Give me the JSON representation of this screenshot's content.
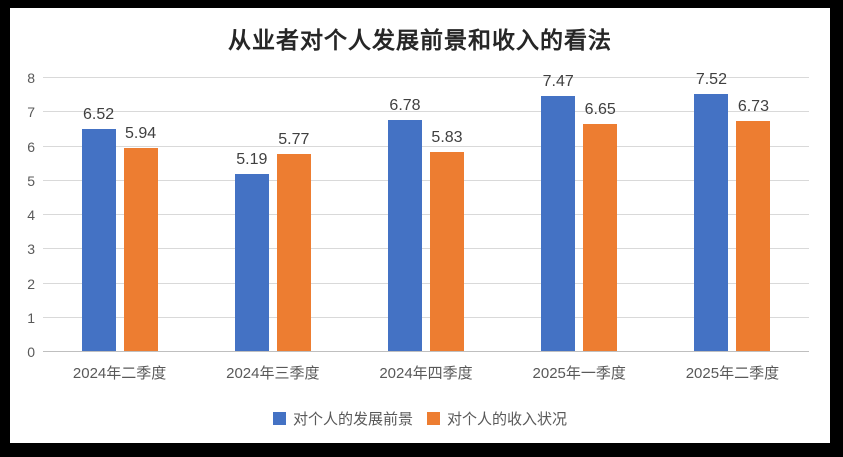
{
  "chart_data": {
    "type": "bar",
    "title": "从业者对个人发展前景和收入的看法",
    "categories": [
      "2024年二季度",
      "2024年三季度",
      "2024年四季度",
      "2025年一季度",
      "2025年二季度"
    ],
    "series": [
      {
        "name": "对个人的发展前景",
        "color": "#4472C4",
        "values": [
          6.52,
          5.19,
          6.78,
          7.47,
          7.52
        ]
      },
      {
        "name": "对个人的收入状况",
        "color": "#ED7D31",
        "values": [
          5.94,
          5.77,
          5.83,
          6.65,
          6.73
        ]
      }
    ],
    "ylim": [
      0,
      8
    ],
    "yticks": [
      0,
      1,
      2,
      3,
      4,
      5,
      6,
      7,
      8
    ],
    "grid": true,
    "legend_position": "bottom"
  },
  "colors": {
    "frame_border": "#000000",
    "background": "#FFFFFF",
    "gridline": "#D9D9D9",
    "axis_line": "#BFBFBF",
    "tick_label": "#595959",
    "data_label": "#404040",
    "title": "#262626"
  }
}
